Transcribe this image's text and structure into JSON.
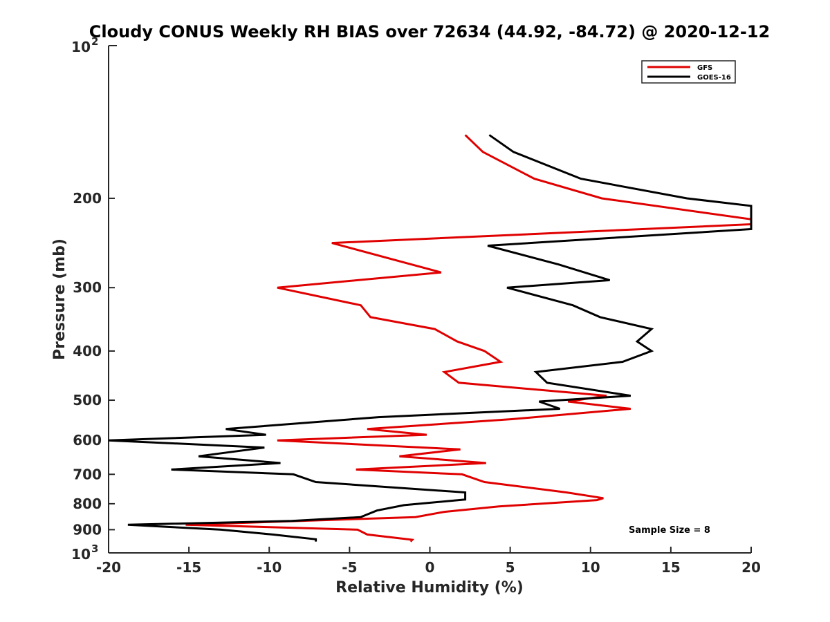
{
  "chart_data": {
    "type": "line",
    "title": "Cloudy CONUS Weekly RH BIAS over 72634 (44.92, -84.72) @ 2020-12-12",
    "xlabel": "Relative Humidity (%)",
    "ylabel": "Pressure (mb)",
    "xlim": [
      -20,
      20
    ],
    "ylim": [
      100,
      1000
    ],
    "y_scale": "log",
    "y_reversed": true,
    "grid": false,
    "legend_placement": "top-right",
    "x_ticks": [
      -20,
      -15,
      -10,
      -5,
      0,
      5,
      10,
      15,
      20
    ],
    "x_tick_labels": [
      "-20",
      "-15",
      "-10",
      "-5",
      "0",
      "5",
      "10",
      "15",
      "20"
    ],
    "y_ticks": [
      200,
      300,
      400,
      500,
      600,
      700,
      800,
      900
    ],
    "y_tick_labels": [
      "200",
      "300",
      "400",
      "500",
      "600",
      "700",
      "800",
      "900"
    ],
    "y_end_labels": [
      {
        "value": 100,
        "base": "10",
        "exp": "2"
      },
      {
        "value": 1000,
        "base": "10",
        "exp": "3"
      }
    ],
    "annotation": "Sample Size = 8",
    "series": [
      {
        "name": "GFS",
        "color": "#e00000",
        "points": [
          [
            2.2,
            150
          ],
          [
            3.3,
            162
          ],
          [
            6.5,
            183
          ],
          [
            10.7,
            200
          ],
          [
            20,
            220
          ],
          [
            20,
            225
          ],
          [
            -6.1,
            245
          ],
          [
            0.7,
            280
          ],
          [
            -9.5,
            300
          ],
          [
            -4.3,
            325
          ],
          [
            -3.7,
            343
          ],
          [
            0.3,
            362
          ],
          [
            1.7,
            383
          ],
          [
            3.4,
            400
          ],
          [
            4.4,
            420
          ],
          [
            0.9,
            440
          ],
          [
            1.8,
            462
          ],
          [
            11.0,
            490
          ],
          [
            8.6,
            503
          ],
          [
            12.5,
            520
          ],
          [
            5.1,
            545
          ],
          [
            -3.9,
            570
          ],
          [
            -0.2,
            585
          ],
          [
            -9.5,
            600
          ],
          [
            1.9,
            625
          ],
          [
            -1.9,
            645
          ],
          [
            3.5,
            665
          ],
          [
            -4.6,
            685
          ],
          [
            2.0,
            700
          ],
          [
            3.4,
            725
          ],
          [
            8.5,
            760
          ],
          [
            10.8,
            780
          ],
          [
            10.4,
            787
          ],
          [
            4.3,
            810
          ],
          [
            0.9,
            830
          ],
          [
            -0.9,
            850
          ],
          [
            -15.2,
            880
          ],
          [
            -4.5,
            900
          ],
          [
            -3.9,
            920
          ],
          [
            -1.1,
            942
          ],
          [
            -1.2,
            950
          ]
        ]
      },
      {
        "name": "GOES-16",
        "color": "#000000",
        "points": [
          [
            3.7,
            150
          ],
          [
            5.2,
            162
          ],
          [
            9.4,
            183
          ],
          [
            16.0,
            200
          ],
          [
            20,
            207
          ],
          [
            20,
            230
          ],
          [
            3.6,
            248
          ],
          [
            8.0,
            270
          ],
          [
            11.2,
            290
          ],
          [
            4.8,
            300
          ],
          [
            8.9,
            325
          ],
          [
            10.6,
            343
          ],
          [
            13.8,
            362
          ],
          [
            12.9,
            383
          ],
          [
            13.8,
            400
          ],
          [
            12.0,
            420
          ],
          [
            6.6,
            440
          ],
          [
            7.3,
            462
          ],
          [
            12.5,
            490
          ],
          [
            6.8,
            503
          ],
          [
            8.1,
            520
          ],
          [
            -3.2,
            540
          ],
          [
            -12.7,
            570
          ],
          [
            -10.2,
            585
          ],
          [
            -20,
            600
          ],
          [
            -10.3,
            620
          ],
          [
            -14.4,
            645
          ],
          [
            -9.3,
            665
          ],
          [
            -16.1,
            685
          ],
          [
            -8.5,
            700
          ],
          [
            -7.1,
            725
          ],
          [
            2.2,
            760
          ],
          [
            2.2,
            785
          ],
          [
            -1.6,
            805
          ],
          [
            -3.3,
            825
          ],
          [
            -4.3,
            850
          ],
          [
            -8.6,
            865
          ],
          [
            -18.8,
            880
          ],
          [
            -13.0,
            900
          ],
          [
            -9.8,
            920
          ],
          [
            -7.1,
            940
          ],
          [
            -7.1,
            950
          ]
        ]
      }
    ]
  }
}
